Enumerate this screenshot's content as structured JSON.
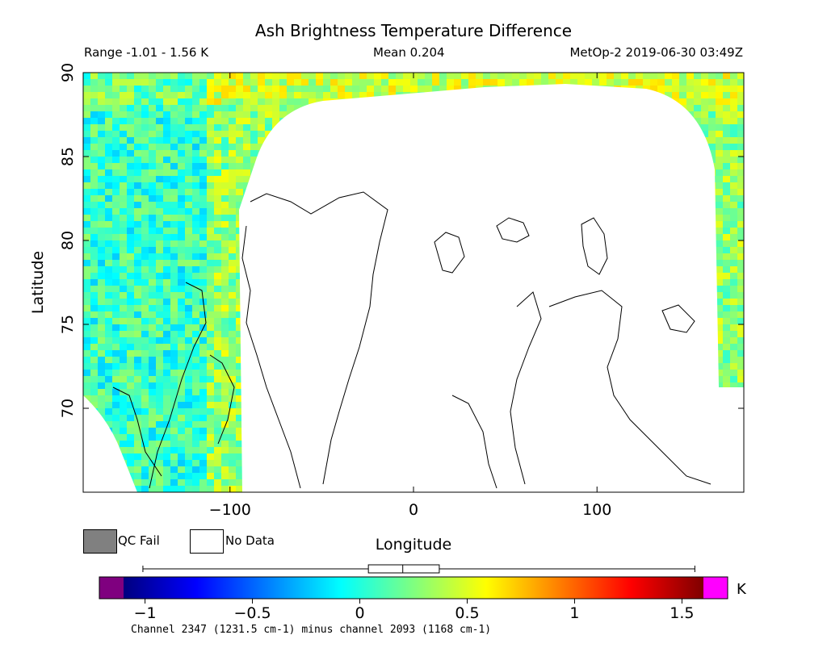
{
  "header": {
    "title": "Ash Brightness Temperature Difference",
    "range_text": "Range -1.01 - 1.56 K",
    "mean_text": "Mean 0.204",
    "meta_text": "MetOp-2 2019-06-30 03:49Z"
  },
  "footer": {
    "channel_text": "Channel 2347 (1231.5 cm-1) minus channel 2093 (1168 cm-1)"
  },
  "legend": {
    "qc_fail_label": "QC Fail",
    "no_data_label": "No Data",
    "qc_fail_color": "#808080",
    "no_data_color": "#ffffff"
  },
  "chart_data": {
    "type": "heatmap",
    "title": "Ash Brightness Temperature Difference",
    "xlabel": "Longitude",
    "ylabel": "Latitude",
    "xlim": [
      -180,
      180
    ],
    "ylim": [
      65,
      90
    ],
    "xticks": [
      -100,
      0,
      100
    ],
    "yticks": [
      70,
      75,
      80,
      85,
      90
    ],
    "value_range": [
      -1.01,
      1.56
    ],
    "mean": 0.204,
    "colorbar": {
      "unit": "K",
      "min": -1.1,
      "max": 1.6,
      "ticks": [
        -1,
        -0.5,
        0,
        0.5,
        1,
        1.5
      ],
      "below_color": "#7f007f",
      "above_color": "#ff00ff",
      "boxplot": {
        "min": -1.01,
        "q1": 0.04,
        "median": 0.2,
        "q3": 0.37,
        "max": 1.56
      }
    }
  }
}
